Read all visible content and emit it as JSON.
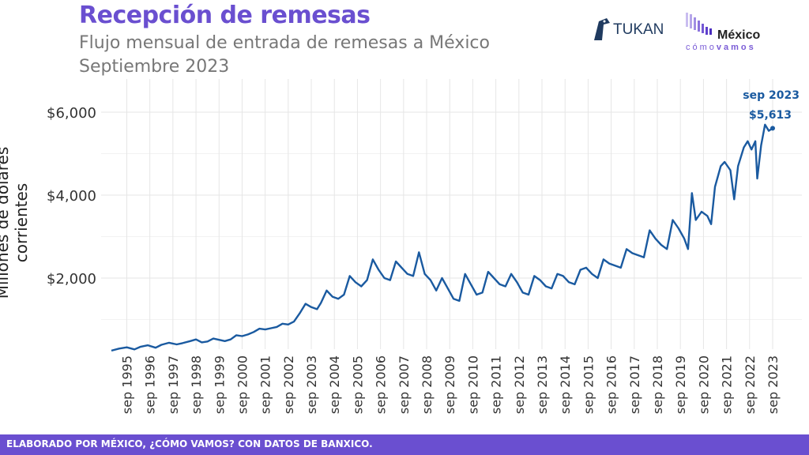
{
  "header": {
    "title": "Recepción de remesas",
    "subtitle_line1": "Flujo mensual de entrada de remesas a México",
    "subtitle_line2": "Septiembre 2023"
  },
  "logos": {
    "tukan": "TUKAN",
    "mexico_word": "México",
    "mexico_sub_light": "cómo",
    "mexico_sub_bold": "vamos"
  },
  "footer": {
    "text": "ELABORADO POR MÉXICO, ¿CÓMO VAMOS? CON DATOS DE BANXICO."
  },
  "colors": {
    "accent": "#6a4fd0",
    "line": "#1a5aa0",
    "grid": "#e6e6e6"
  },
  "chart_data": {
    "type": "line",
    "ylabel": "Millones de dólares corrientes",
    "y_ticks": [
      {
        "value": 2000,
        "label": "$2,000"
      },
      {
        "value": 4000,
        "label": "$4,000"
      },
      {
        "value": 6000,
        "label": "$6,000"
      }
    ],
    "ylim": [
      0,
      6600
    ],
    "x_ticks": [
      "sep 1995",
      "sep 1996",
      "sep 1997",
      "sep 1998",
      "sep 1999",
      "sep 2000",
      "sep 2001",
      "sep 2002",
      "sep 2003",
      "sep 2004",
      "sep 2005",
      "sep 2006",
      "sep 2007",
      "sep 2008",
      "sep 2009",
      "sep 2010",
      "sep 2011",
      "sep 2012",
      "sep 2013",
      "sep 2014",
      "sep 2015",
      "sep 2016",
      "sep 2017",
      "sep 2018",
      "sep 2019",
      "sep 2020",
      "sep 2021",
      "sep 2022",
      "sep 2023"
    ],
    "x_start": "1995-01",
    "x_end": "2023-09",
    "grid": true,
    "annotation": {
      "label_date": "sep 2023",
      "label_value": "$5,613"
    },
    "series": [
      {
        "points": [
          [
            "1995-01",
            250
          ],
          [
            "1995-05",
            300
          ],
          [
            "1995-09",
            330
          ],
          [
            "1996-01",
            280
          ],
          [
            "1996-04",
            340
          ],
          [
            "1996-08",
            380
          ],
          [
            "1996-12",
            320
          ],
          [
            "1997-03",
            390
          ],
          [
            "1997-07",
            440
          ],
          [
            "1997-11",
            400
          ],
          [
            "1998-02",
            430
          ],
          [
            "1998-06",
            480
          ],
          [
            "1998-09",
            520
          ],
          [
            "1998-12",
            450
          ],
          [
            "1999-03",
            470
          ],
          [
            "1999-06",
            540
          ],
          [
            "1999-09",
            510
          ],
          [
            "1999-12",
            480
          ],
          [
            "2000-03",
            520
          ],
          [
            "2000-06",
            620
          ],
          [
            "2000-09",
            600
          ],
          [
            "2000-12",
            640
          ],
          [
            "2001-03",
            700
          ],
          [
            "2001-06",
            780
          ],
          [
            "2001-09",
            760
          ],
          [
            "2001-12",
            790
          ],
          [
            "2002-03",
            820
          ],
          [
            "2002-06",
            900
          ],
          [
            "2002-09",
            880
          ],
          [
            "2002-12",
            950
          ],
          [
            "2003-03",
            1150
          ],
          [
            "2003-06",
            1380
          ],
          [
            "2003-09",
            1300
          ],
          [
            "2003-12",
            1250
          ],
          [
            "2004-02",
            1400
          ],
          [
            "2004-05",
            1700
          ],
          [
            "2004-08",
            1550
          ],
          [
            "2004-11",
            1500
          ],
          [
            "2005-02",
            1600
          ],
          [
            "2005-05",
            2050
          ],
          [
            "2005-08",
            1900
          ],
          [
            "2005-11",
            1800
          ],
          [
            "2006-02",
            1950
          ],
          [
            "2006-05",
            2450
          ],
          [
            "2006-08",
            2200
          ],
          [
            "2006-11",
            2000
          ],
          [
            "2007-02",
            1950
          ],
          [
            "2007-05",
            2400
          ],
          [
            "2007-08",
            2250
          ],
          [
            "2007-11",
            2100
          ],
          [
            "2008-02",
            2050
          ],
          [
            "2008-05",
            2620
          ],
          [
            "2008-08",
            2100
          ],
          [
            "2008-11",
            1950
          ],
          [
            "2009-02",
            1700
          ],
          [
            "2009-05",
            2000
          ],
          [
            "2009-08",
            1750
          ],
          [
            "2009-11",
            1500
          ],
          [
            "2010-02",
            1450
          ],
          [
            "2010-05",
            2100
          ],
          [
            "2010-08",
            1850
          ],
          [
            "2010-11",
            1600
          ],
          [
            "2011-02",
            1650
          ],
          [
            "2011-05",
            2150
          ],
          [
            "2011-08",
            2000
          ],
          [
            "2011-11",
            1850
          ],
          [
            "2012-02",
            1800
          ],
          [
            "2012-05",
            2100
          ],
          [
            "2012-08",
            1900
          ],
          [
            "2012-11",
            1650
          ],
          [
            "2013-02",
            1600
          ],
          [
            "2013-05",
            2050
          ],
          [
            "2013-08",
            1950
          ],
          [
            "2013-11",
            1800
          ],
          [
            "2014-02",
            1750
          ],
          [
            "2014-05",
            2100
          ],
          [
            "2014-08",
            2050
          ],
          [
            "2014-11",
            1900
          ],
          [
            "2015-02",
            1850
          ],
          [
            "2015-05",
            2200
          ],
          [
            "2015-08",
            2250
          ],
          [
            "2015-11",
            2100
          ],
          [
            "2016-02",
            2000
          ],
          [
            "2016-05",
            2450
          ],
          [
            "2016-08",
            2350
          ],
          [
            "2016-11",
            2300
          ],
          [
            "2017-02",
            2250
          ],
          [
            "2017-05",
            2700
          ],
          [
            "2017-08",
            2600
          ],
          [
            "2017-11",
            2550
          ],
          [
            "2018-02",
            2500
          ],
          [
            "2018-05",
            3150
          ],
          [
            "2018-08",
            2950
          ],
          [
            "2018-11",
            2800
          ],
          [
            "2019-02",
            2700
          ],
          [
            "2019-05",
            3400
          ],
          [
            "2019-08",
            3200
          ],
          [
            "2019-11",
            2950
          ],
          [
            "2020-01",
            2700
          ],
          [
            "2020-03",
            4050
          ],
          [
            "2020-05",
            3400
          ],
          [
            "2020-08",
            3600
          ],
          [
            "2020-11",
            3500
          ],
          [
            "2021-01",
            3300
          ],
          [
            "2021-03",
            4200
          ],
          [
            "2021-06",
            4700
          ],
          [
            "2021-08",
            4800
          ],
          [
            "2021-11",
            4600
          ],
          [
            "2022-01",
            3900
          ],
          [
            "2022-03",
            4700
          ],
          [
            "2022-06",
            5150
          ],
          [
            "2022-08",
            5300
          ],
          [
            "2022-10",
            5100
          ],
          [
            "2022-12",
            5300
          ],
          [
            "2023-01",
            4400
          ],
          [
            "2023-03",
            5200
          ],
          [
            "2023-05",
            5700
          ],
          [
            "2023-07",
            5550
          ],
          [
            "2023-09",
            5613
          ]
        ]
      }
    ]
  }
}
